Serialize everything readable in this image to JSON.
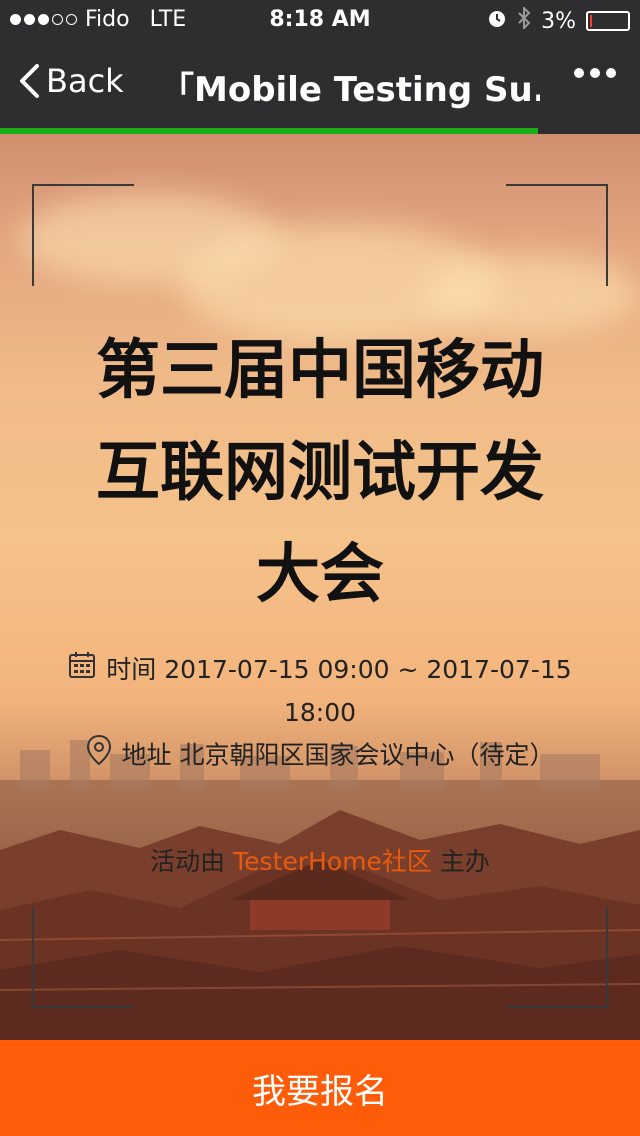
{
  "status_bar": {
    "carrier": "Fido",
    "network": "LTE",
    "time": "8:18 AM",
    "battery": "3%",
    "battery_level": 0.03,
    "signal_bars": 3
  },
  "nav": {
    "back_label": "Back",
    "title": "「Mobile Testing Su...",
    "load_progress": 0.84
  },
  "event": {
    "title_lines": [
      "第三届中国移动",
      "互联网测试开发",
      "大会"
    ],
    "time_label": "时间",
    "time_value": "2017-07-15 09:00 ~ 2017-07-15",
    "time_value_cont": "18:00",
    "address_label": "地址",
    "address_value": "北京朝阳区国家会议中心（待定）",
    "organizer_prefix": "活动由",
    "organizer_name": "TesterHome社区",
    "organizer_suffix": "主办"
  },
  "cta": {
    "signup_label": "我要报名"
  },
  "colors": {
    "accent": "#ff5c0a",
    "link": "#e85a0c",
    "progress": "#1aad19",
    "bar_bg": "#2e2e30"
  },
  "icons": {
    "back": "chevron-left-icon",
    "more": "more-dots-icon",
    "calendar": "calendar-icon",
    "location": "location-pin-icon",
    "alarm": "alarm-icon",
    "bluetooth": "bluetooth-icon",
    "battery": "battery-icon"
  }
}
